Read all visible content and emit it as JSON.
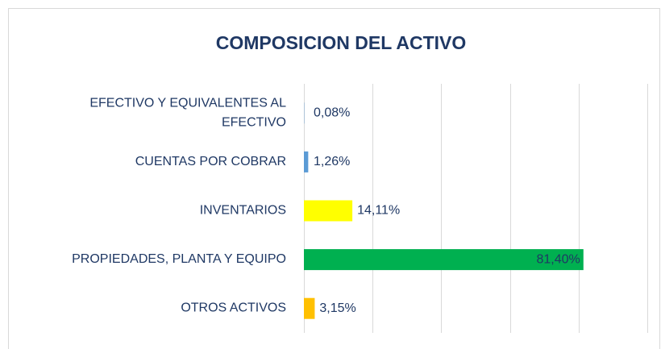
{
  "chart_data": {
    "type": "barh",
    "title": "COMPOSICION DEL ACTIVO",
    "categories": [
      "EFECTIVO Y EQUIVALENTES AL EFECTIVO",
      "CUENTAS POR COBRAR",
      "INVENTARIOS",
      "PROPIEDADES, PLANTA Y EQUIPO",
      "OTROS ACTIVOS"
    ],
    "values": [
      0.08,
      1.26,
      14.11,
      81.4,
      3.15
    ],
    "value_labels": [
      "0,08%",
      "1,26%",
      "14,11%",
      "81,40%",
      "3,15%"
    ],
    "colors": [
      "#5b9bd5",
      "#5b9bd5",
      "#ffff00",
      "#00b050",
      "#ffc000"
    ],
    "xlim": [
      0,
      100
    ],
    "xticks": [
      0,
      20,
      40,
      60,
      80,
      100
    ],
    "grid": true
  }
}
